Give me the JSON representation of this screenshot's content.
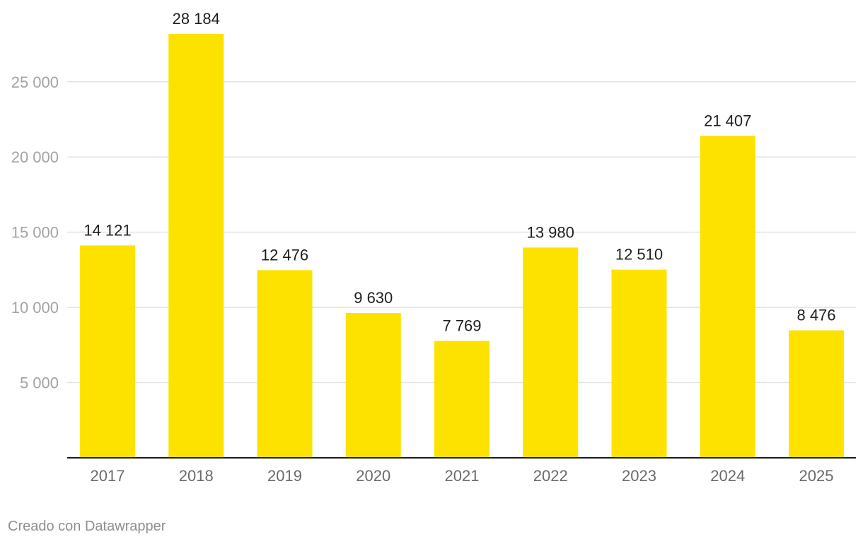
{
  "chart_data": {
    "type": "bar",
    "title": "",
    "xlabel": "",
    "ylabel": "",
    "categories": [
      "2017",
      "2018",
      "2019",
      "2020",
      "2021",
      "2022",
      "2023",
      "2024",
      "2025"
    ],
    "values": [
      14121,
      28184,
      12476,
      9630,
      7769,
      13980,
      12510,
      21407,
      8476
    ],
    "value_labels": [
      "14 121",
      "28 184",
      "12 476",
      "9 630",
      "7 769",
      "13 980",
      "12 510",
      "21 407",
      "8 476"
    ],
    "ylim": [
      0,
      28184
    ],
    "yticks": [
      5000,
      10000,
      15000,
      20000,
      25000
    ],
    "ytick_labels": [
      "5 000",
      "10 000",
      "15 000",
      "20 000",
      "25 000"
    ],
    "grid": true,
    "bar_color": "#fde200"
  },
  "footer": {
    "credit": "Creado con Datawrapper"
  }
}
